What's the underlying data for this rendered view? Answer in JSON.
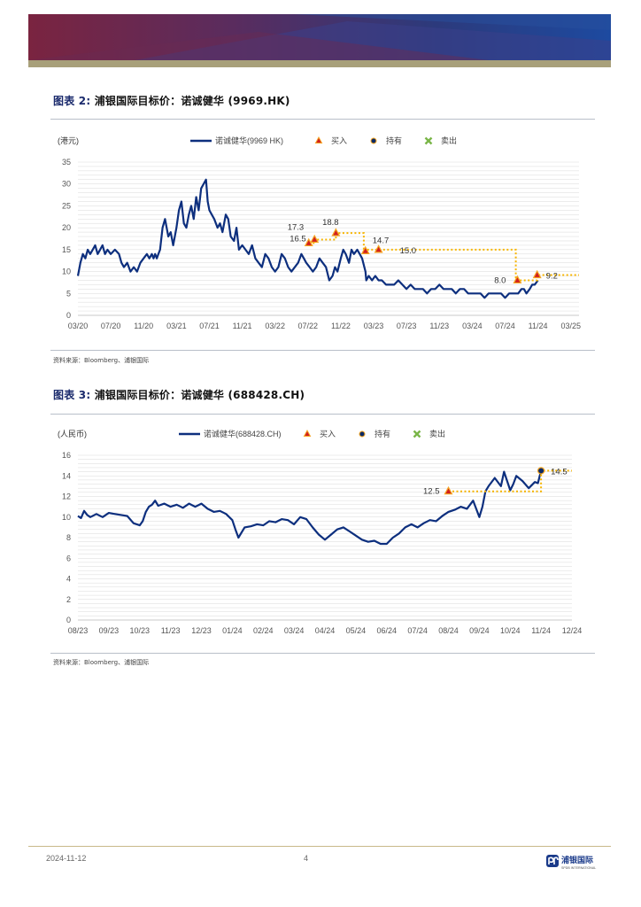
{
  "colors": {
    "series": "#0d2f7e",
    "buy": "#f5a623",
    "buy_edge": "#d11f1f",
    "hold": "#0b2a66",
    "sell": "#7ab648",
    "target": "#f7b500",
    "grid": "#d9d9d9",
    "axis_text": "#555555"
  },
  "figures": [
    {
      "title_prefix": "图表 2:",
      "title_text": "浦银国际目标价：诺诚健华 (9969.HK)",
      "source": "资料来源：Bloomberg、浦银国际",
      "chart_data": {
        "type": "line",
        "unit_label": "(港元)",
        "legend": {
          "series": "诺诚健华(9969 HK)",
          "buy": "买入",
          "hold": "持有",
          "sell": "卖出"
        },
        "ylim": [
          0,
          35
        ],
        "yticks": [
          0,
          5,
          10,
          15,
          20,
          25,
          30,
          35
        ],
        "xlim": [
          0,
          61
        ],
        "xticks": [
          {
            "label": "03/20",
            "x": 0
          },
          {
            "label": "07/20",
            "x": 4
          },
          {
            "label": "11/20",
            "x": 8
          },
          {
            "label": "03/21",
            "x": 12
          },
          {
            "label": "07/21",
            "x": 16
          },
          {
            "label": "11/21",
            "x": 20
          },
          {
            "label": "03/22",
            "x": 24
          },
          {
            "label": "07/22",
            "x": 28
          },
          {
            "label": "11/22",
            "x": 32
          },
          {
            "label": "03/23",
            "x": 36
          },
          {
            "label": "07/23",
            "x": 40
          },
          {
            "label": "11/23",
            "x": 44
          },
          {
            "label": "03/24",
            "x": 48
          },
          {
            "label": "07/24",
            "x": 52
          },
          {
            "label": "11/24",
            "x": 56
          },
          {
            "label": "03/25",
            "x": 60
          }
        ],
        "series": [
          {
            "name": "诺诚健华(9969 HK)",
            "x": [
              0,
              0.3,
              0.6,
              0.9,
              1.2,
              1.5,
              1.8,
              2.1,
              2.4,
              2.7,
              3.0,
              3.3,
              3.6,
              4.0,
              4.5,
              5.0,
              5.3,
              5.6,
              6.0,
              6.4,
              6.8,
              7.2,
              7.6,
              8.0,
              8.4,
              8.7,
              9.0,
              9.2,
              9.4,
              9.6,
              9.8,
              10.0,
              10.3,
              10.6,
              11.0,
              11.3,
              11.6,
              12.0,
              12.3,
              12.6,
              12.9,
              13.2,
              13.5,
              13.8,
              14.1,
              14.4,
              14.7,
              15.0,
              15.3,
              15.6,
              15.8,
              16.0,
              16.3,
              16.6,
              17.0,
              17.3,
              17.6,
              18.0,
              18.3,
              18.6,
              19.0,
              19.3,
              19.6,
              20.0,
              20.4,
              20.8,
              21.2,
              21.6,
              22.0,
              22.4,
              22.8,
              23.2,
              23.6,
              24.0,
              24.4,
              24.8,
              25.2,
              25.6,
              26.0,
              26.4,
              26.8,
              27.2,
              27.5,
              27.8,
              28.2,
              28.6,
              29.0,
              29.4,
              29.8,
              30.2,
              30.6,
              31.0,
              31.3,
              31.6,
              32.0,
              32.3,
              32.6,
              33.0,
              33.3,
              33.6,
              34.0,
              34.3,
              34.6,
              35.0,
              35.1,
              35.4,
              35.8,
              36.2,
              36.6,
              37.0,
              37.5,
              38.0,
              38.5,
              39.0,
              39.5,
              40.0,
              40.5,
              41.0,
              41.5,
              42.0,
              42.5,
              43.0,
              43.5,
              44.0,
              44.5,
              45.0,
              45.5,
              46.0,
              46.5,
              47.0,
              47.5,
              48.0,
              48.5,
              49.0,
              49.5,
              50.0,
              50.5,
              51.0,
              51.5,
              52.0,
              52.5,
              53.0,
              53.3,
              53.6,
              54.0,
              54.3,
              54.6,
              55.0,
              55.3,
              55.6,
              56.0
            ],
            "values": [
              9,
              12,
              14,
              13,
              15,
              14,
              15,
              16,
              14,
              15,
              16,
              14,
              15,
              14,
              15,
              14,
              12,
              11,
              12,
              10,
              11,
              10,
              12,
              13,
              14,
              13,
              14,
              13,
              14,
              13,
              14,
              15,
              20,
              22,
              18,
              19,
              16,
              20,
              24,
              26,
              21,
              20,
              23,
              25,
              22,
              27,
              24,
              29,
              30,
              31,
              26,
              24,
              23,
              22,
              20,
              21,
              19,
              23,
              22,
              18,
              17,
              20,
              15,
              16,
              15,
              14,
              16,
              13,
              12,
              11,
              14,
              13,
              11,
              10,
              11,
              14,
              13,
              11,
              10,
              11,
              12,
              14,
              13,
              12,
              11,
              10,
              11,
              13,
              12,
              11,
              8,
              9,
              11,
              10,
              13,
              15,
              14,
              12,
              15,
              14,
              15,
              14,
              13,
              10,
              8,
              9,
              8,
              9,
              8,
              8,
              7,
              7,
              7,
              8,
              7,
              6,
              7,
              6,
              6,
              6,
              5,
              6,
              6,
              7,
              6,
              6,
              6,
              5,
              6,
              6,
              5,
              5,
              5,
              5,
              4,
              5,
              5,
              5,
              5,
              4,
              5,
              5,
              5,
              5,
              6,
              6,
              5,
              6,
              7,
              7,
              8
            ]
          }
        ],
        "markers": [
          {
            "type": "buy",
            "x": 28.1,
            "y": 16.5,
            "label": "16.5"
          },
          {
            "type": "buy",
            "x": 28.8,
            "y": 17.3,
            "label": "17.3"
          },
          {
            "type": "buy",
            "x": 31.4,
            "y": 18.8,
            "label": "18.8"
          },
          {
            "type": "buy",
            "x": 35.0,
            "y": 14.7,
            "label": "14.7"
          },
          {
            "type": "buy",
            "x": 36.6,
            "y": 15.0,
            "label": "15.0"
          },
          {
            "type": "buy",
            "x": 53.5,
            "y": 8.0,
            "label": "8.0"
          },
          {
            "type": "buy",
            "x": 55.9,
            "y": 9.2,
            "label": "9.2"
          }
        ],
        "target_path": [
          [
            28.1,
            16.5
          ],
          [
            28.8,
            16.5
          ],
          [
            28.8,
            17.3
          ],
          [
            31.4,
            17.3
          ],
          [
            31.4,
            18.8
          ],
          [
            34.8,
            18.8
          ],
          [
            34.8,
            14.7
          ],
          [
            35.0,
            14.7
          ],
          [
            35.0,
            15.0
          ],
          [
            53.3,
            15.0
          ],
          [
            53.3,
            8.0
          ],
          [
            55.9,
            8.0
          ],
          [
            55.9,
            9.2
          ],
          [
            61,
            9.2
          ]
        ]
      }
    },
    {
      "title_prefix": "图表 3:",
      "title_text": "浦银国际目标价：诺诚健华 (688428.CH)",
      "source": "资料来源：Bloomberg、浦银国际",
      "chart_data": {
        "type": "line",
        "unit_label": "(人民币)",
        "legend": {
          "series": "诺诚健华(688428.CH)",
          "buy": "买入",
          "hold": "持有",
          "sell": "卖出"
        },
        "ylim": [
          0,
          16
        ],
        "yticks": [
          0,
          2,
          4,
          6,
          8,
          10,
          12,
          14,
          16
        ],
        "xlim": [
          0,
          16
        ],
        "xticks": [
          {
            "label": "08/23",
            "x": 0
          },
          {
            "label": "09/23",
            "x": 1
          },
          {
            "label": "10/23",
            "x": 2
          },
          {
            "label": "11/23",
            "x": 3
          },
          {
            "label": "12/23",
            "x": 4
          },
          {
            "label": "01/24",
            "x": 5
          },
          {
            "label": "02/24",
            "x": 6
          },
          {
            "label": "03/24",
            "x": 7
          },
          {
            "label": "04/24",
            "x": 8
          },
          {
            "label": "05/24",
            "x": 9
          },
          {
            "label": "06/24",
            "x": 10
          },
          {
            "label": "07/24",
            "x": 11
          },
          {
            "label": "08/24",
            "x": 12
          },
          {
            "label": "09/24",
            "x": 13
          },
          {
            "label": "10/24",
            "x": 14
          },
          {
            "label": "11/24",
            "x": 15
          },
          {
            "label": "12/24",
            "x": 16
          }
        ],
        "series": [
          {
            "name": "诺诚健华(688428.CH)",
            "x": [
              0,
              0.1,
              0.2,
              0.3,
              0.4,
              0.6,
              0.8,
              1.0,
              1.2,
              1.4,
              1.6,
              1.8,
              2.0,
              2.1,
              2.2,
              2.3,
              2.4,
              2.5,
              2.6,
              2.8,
              3.0,
              3.2,
              3.4,
              3.6,
              3.8,
              4.0,
              4.2,
              4.4,
              4.6,
              4.8,
              5.0,
              5.1,
              5.2,
              5.4,
              5.6,
              5.8,
              6.0,
              6.2,
              6.4,
              6.6,
              6.8,
              7.0,
              7.2,
              7.4,
              7.6,
              7.8,
              8.0,
              8.2,
              8.4,
              8.6,
              8.8,
              9.0,
              9.2,
              9.4,
              9.6,
              9.8,
              10.0,
              10.2,
              10.4,
              10.6,
              10.8,
              11.0,
              11.2,
              11.4,
              11.6,
              11.8,
              12.0,
              12.2,
              12.4,
              12.6,
              12.8,
              13.0,
              13.1,
              13.2,
              13.3,
              13.5,
              13.7,
              13.8,
              14.0,
              14.1,
              14.2,
              14.4,
              14.6,
              14.8,
              14.9,
              15.0
            ],
            "values": [
              10.1,
              9.9,
              10.6,
              10.2,
              10.0,
              10.3,
              10.0,
              10.4,
              10.3,
              10.2,
              10.1,
              9.4,
              9.2,
              9.6,
              10.5,
              11.0,
              11.2,
              11.6,
              11.1,
              11.3,
              11.0,
              11.2,
              10.9,
              11.3,
              11.0,
              11.3,
              10.8,
              10.5,
              10.6,
              10.3,
              9.7,
              8.8,
              8.0,
              9.0,
              9.1,
              9.3,
              9.2,
              9.6,
              9.5,
              9.8,
              9.7,
              9.3,
              10.0,
              9.8,
              9.0,
              8.3,
              7.8,
              8.3,
              8.8,
              9.0,
              8.6,
              8.2,
              7.8,
              7.6,
              7.7,
              7.4,
              7.4,
              8.0,
              8.4,
              9.0,
              9.3,
              9.0,
              9.4,
              9.7,
              9.6,
              10.1,
              10.5,
              10.7,
              11.0,
              10.8,
              11.6,
              10.0,
              11.0,
              12.5,
              13.0,
              13.8,
              13.0,
              14.4,
              12.6,
              13.2,
              14.0,
              13.5,
              12.8,
              13.4,
              13.3,
              14.5
            ]
          }
        ],
        "markers": [
          {
            "type": "buy",
            "x": 12.0,
            "y": 12.5,
            "label": "12.5"
          },
          {
            "type": "hold",
            "x": 15.0,
            "y": 14.5,
            "label": "14.5"
          }
        ],
        "target_path": [
          [
            12.0,
            12.5
          ],
          [
            15.0,
            12.5
          ],
          [
            15.0,
            14.5
          ],
          [
            16,
            14.5
          ]
        ]
      }
    }
  ],
  "footer": {
    "date": "2024-11-12",
    "page": "4",
    "logo_text": "浦银国际",
    "logo_sub": "SPDB INTERNATIONAL"
  }
}
